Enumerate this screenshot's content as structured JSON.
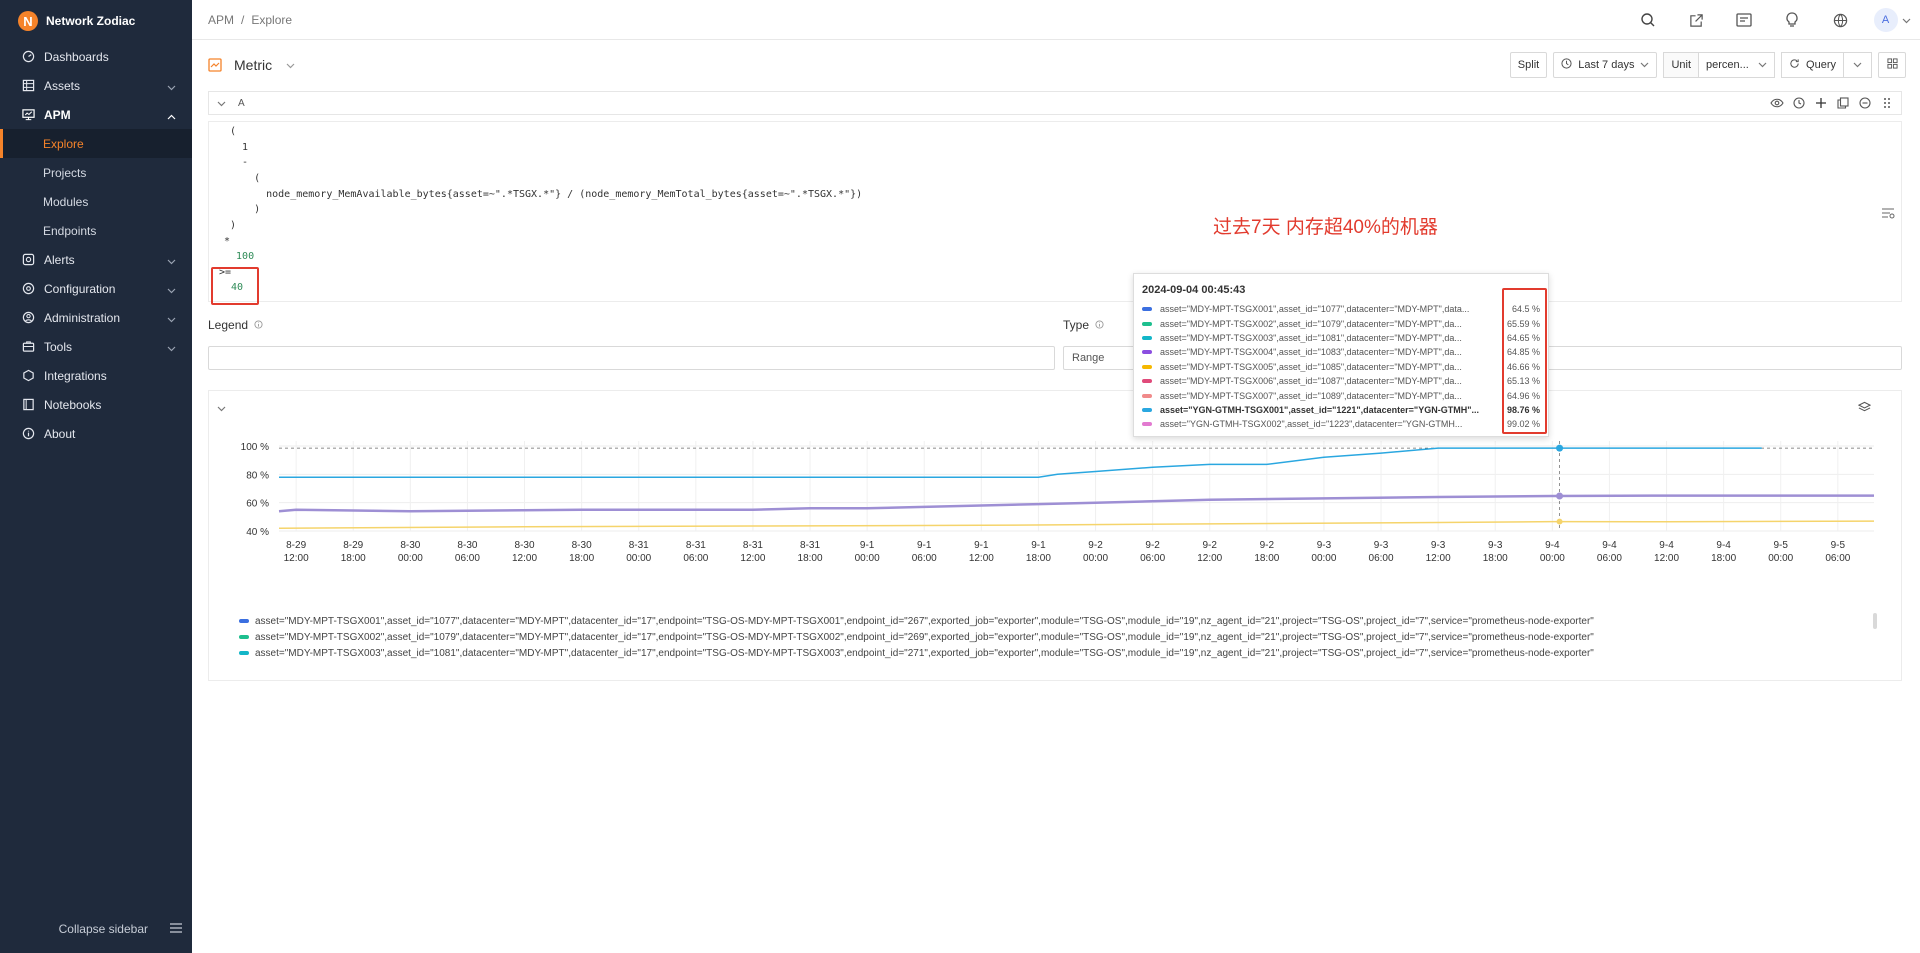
{
  "brand": {
    "name": "Network Zodiac",
    "logo_letter": "N"
  },
  "sidebar": {
    "items": [
      {
        "label": "Dashboards",
        "icon": "dashboard-icon",
        "chevron": false
      },
      {
        "label": "Assets",
        "icon": "assets-icon",
        "chevron": true
      },
      {
        "label": "APM",
        "icon": "monitor-icon",
        "chevron": true,
        "open": true
      },
      {
        "label": "Alerts",
        "icon": "alert-icon",
        "chevron": true
      },
      {
        "label": "Configuration",
        "icon": "config-icon",
        "chevron": true
      },
      {
        "label": "Administration",
        "icon": "admin-icon",
        "chevron": true
      },
      {
        "label": "Tools",
        "icon": "tools-icon",
        "chevron": true
      },
      {
        "label": "Integrations",
        "icon": "integrations-icon",
        "chevron": false
      },
      {
        "label": "Notebooks",
        "icon": "notebook-icon",
        "chevron": false
      },
      {
        "label": "About",
        "icon": "info-icon",
        "chevron": false
      }
    ],
    "apm_sub": [
      "Explore",
      "Projects",
      "Modules",
      "Endpoints"
    ],
    "collapse_label": "Collapse sidebar"
  },
  "breadcrumb": {
    "parent": "APM",
    "separator": "/",
    "current": "Explore"
  },
  "toolbar": {
    "datasource": "Metric",
    "split_label": "Split",
    "time_range": "Last 7 days",
    "unit_label": "Unit",
    "unit_value": "percen...",
    "query_label": "Query"
  },
  "query": {
    "name": "A",
    "lines": [
      "(",
      "  1",
      "  -",
      "    (",
      "      node_memory_MemAvailable_bytes{asset=~\".*TSGX.*\"} / (node_memory_MemTotal_bytes{asset=~\".*TSGX.*\"})",
      "    )",
      ")",
      "*",
      "  100",
      ">=",
      "  40"
    ],
    "annotation": "过去7天 内存超40%的机器"
  },
  "options": {
    "legend_label": "Legend",
    "type_label": "Type",
    "type_value": "Range"
  },
  "tooltip": {
    "time": "2024-09-04 00:45:43",
    "rows": [
      {
        "label": "asset=\"MDY-MPT-TSGX001\",asset_id=\"1077\",datacenter=\"MDY-MPT\",data...",
        "value": "64.5 %",
        "color": "#3b6fe0",
        "bold": false
      },
      {
        "label": "asset=\"MDY-MPT-TSGX002\",asset_id=\"1079\",datacenter=\"MDY-MPT\",da...",
        "value": "65.59 %",
        "color": "#1dbf8e",
        "bold": false
      },
      {
        "label": "asset=\"MDY-MPT-TSGX003\",asset_id=\"1081\",datacenter=\"MDY-MPT\",da...",
        "value": "64.65 %",
        "color": "#13b6c8",
        "bold": false
      },
      {
        "label": "asset=\"MDY-MPT-TSGX004\",asset_id=\"1083\",datacenter=\"MDY-MPT\",da...",
        "value": "64.85 %",
        "color": "#8b4ee0",
        "bold": false
      },
      {
        "label": "asset=\"MDY-MPT-TSGX005\",asset_id=\"1085\",datacenter=\"MDY-MPT\",da...",
        "value": "46.66 %",
        "color": "#f5b800",
        "bold": false
      },
      {
        "label": "asset=\"MDY-MPT-TSGX006\",asset_id=\"1087\",datacenter=\"MDY-MPT\",da...",
        "value": "65.13 %",
        "color": "#e04a7a",
        "bold": false
      },
      {
        "label": "asset=\"MDY-MPT-TSGX007\",asset_id=\"1089\",datacenter=\"MDY-MPT\",da...",
        "value": "64.96 %",
        "color": "#f08a8a",
        "bold": false
      },
      {
        "label": "asset=\"YGN-GTMH-TSGX001\",asset_id=\"1221\",datacenter=\"YGN-GTMH\"...",
        "value": "98.76 %",
        "color": "#2aa7e0",
        "bold": true
      },
      {
        "label": "asset=\"YGN-GTMH-TSGX002\",asset_id=\"1223\",datacenter=\"YGN-GTMH...",
        "value": "99.02 %",
        "color": "#e27ad0",
        "bold": false
      }
    ]
  },
  "legend": [
    {
      "color": "#3b6fe0",
      "text": "asset=\"MDY-MPT-TSGX001\",asset_id=\"1077\",datacenter=\"MDY-MPT\",datacenter_id=\"17\",endpoint=\"TSG-OS-MDY-MPT-TSGX001\",endpoint_id=\"267\",exported_job=\"exporter\",module=\"TSG-OS\",module_id=\"19\",nz_agent_id=\"21\",project=\"TSG-OS\",project_id=\"7\",service=\"prometheus-node-exporter\""
    },
    {
      "color": "#1dbf8e",
      "text": "asset=\"MDY-MPT-TSGX002\",asset_id=\"1079\",datacenter=\"MDY-MPT\",datacenter_id=\"17\",endpoint=\"TSG-OS-MDY-MPT-TSGX002\",endpoint_id=\"269\",exported_job=\"exporter\",module=\"TSG-OS\",module_id=\"19\",nz_agent_id=\"21\",project=\"TSG-OS\",project_id=\"7\",service=\"prometheus-node-exporter\""
    },
    {
      "color": "#13b6c8",
      "text": "asset=\"MDY-MPT-TSGX003\",asset_id=\"1081\",datacenter=\"MDY-MPT\",datacenter_id=\"17\",endpoint=\"TSG-OS-MDY-MPT-TSGX003\",endpoint_id=\"271\",exported_job=\"exporter\",module=\"TSG-OS\",module_id=\"19\",nz_agent_id=\"21\",project=\"TSG-OS\",project_id=\"7\",service=\"prometheus-node-exporter\""
    }
  ],
  "colors": {
    "accent": "#f5832a",
    "sidebar_bg": "#1f2a3c",
    "annotation": "#e23b2e"
  },
  "chart_data": {
    "type": "line",
    "ylim": [
      40,
      100
    ],
    "yticks": [
      "100 %",
      "80 %",
      "60 %",
      "40 %"
    ],
    "x_ticks": [
      [
        "8-29",
        "12:00"
      ],
      [
        "8-29",
        "18:00"
      ],
      [
        "8-30",
        "00:00"
      ],
      [
        "8-30",
        "06:00"
      ],
      [
        "8-30",
        "12:00"
      ],
      [
        "8-30",
        "18:00"
      ],
      [
        "8-31",
        "00:00"
      ],
      [
        "8-31",
        "06:00"
      ],
      [
        "8-31",
        "12:00"
      ],
      [
        "8-31",
        "18:00"
      ],
      [
        "9-1",
        "00:00"
      ],
      [
        "9-1",
        "06:00"
      ],
      [
        "9-1",
        "12:00"
      ],
      [
        "9-1",
        "18:00"
      ],
      [
        "9-2",
        "00:00"
      ],
      [
        "9-2",
        "06:00"
      ],
      [
        "9-2",
        "12:00"
      ],
      [
        "9-2",
        "18:00"
      ],
      [
        "9-3",
        "00:00"
      ],
      [
        "9-3",
        "06:00"
      ],
      [
        "9-3",
        "12:00"
      ],
      [
        "9-3",
        "18:00"
      ],
      [
        "9-4",
        "00:00"
      ],
      [
        "9-4",
        "06:00"
      ],
      [
        "9-4",
        "12:00"
      ],
      [
        "9-4",
        "18:00"
      ],
      [
        "9-5",
        "00:00"
      ],
      [
        "9-5",
        "06:00"
      ]
    ],
    "x_hours": [
      0,
      6,
      12,
      18,
      24,
      30,
      36,
      42,
      48,
      54,
      60,
      66,
      72,
      78,
      84,
      90,
      96,
      102,
      108,
      114,
      120,
      126,
      132,
      138,
      144,
      150,
      156,
      162
    ],
    "xlim_hours": [
      -1.8,
      165.8
    ],
    "threshold": 98.5,
    "cursor_hour": 132.76,
    "series": [
      {
        "color": "#2aa7e0",
        "points": [
          [
            -1.8,
            78
          ],
          [
            60,
            78
          ],
          [
            78,
            78
          ],
          [
            80,
            80
          ],
          [
            84,
            82
          ],
          [
            90,
            85
          ],
          [
            96,
            87
          ],
          [
            102,
            87
          ],
          [
            108,
            92
          ],
          [
            114,
            95
          ],
          [
            120,
            98.5
          ],
          [
            132,
            98.5
          ],
          [
            154,
            98.5
          ]
        ]
      },
      {
        "color": "#9e8fd4",
        "points": [
          [
            -1.8,
            54
          ],
          [
            0,
            55
          ],
          [
            12,
            54
          ],
          [
            30,
            55
          ],
          [
            48,
            55
          ],
          [
            54,
            56
          ],
          [
            60,
            56
          ],
          [
            66,
            57
          ],
          [
            72,
            58
          ],
          [
            78,
            59
          ],
          [
            84,
            60
          ],
          [
            96,
            62
          ],
          [
            108,
            63
          ],
          [
            120,
            64
          ],
          [
            132,
            64.7
          ],
          [
            144,
            65
          ],
          [
            165.8,
            65
          ]
        ]
      },
      {
        "color": "#f5d46b",
        "points": [
          [
            -1.8,
            42
          ],
          [
            24,
            43
          ],
          [
            48,
            43.5
          ],
          [
            72,
            44
          ],
          [
            96,
            45
          ],
          [
            120,
            46
          ],
          [
            132,
            46.66
          ],
          [
            144,
            46.5
          ],
          [
            165.8,
            47
          ]
        ]
      }
    ]
  }
}
